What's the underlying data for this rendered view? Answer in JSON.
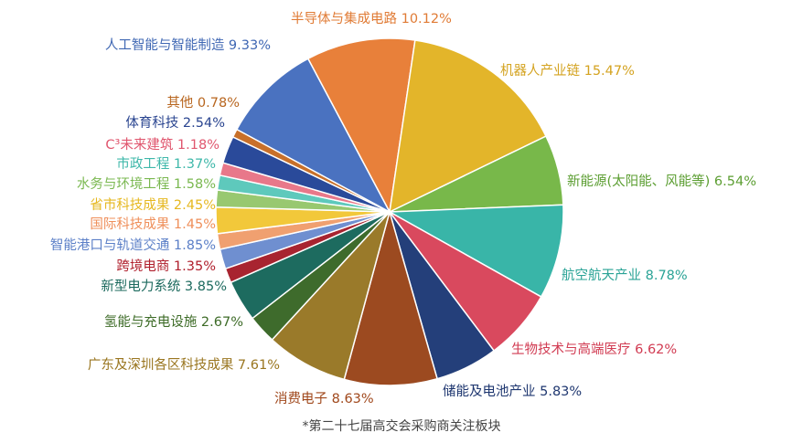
{
  "chart_data": {
    "type": "pie",
    "title": "",
    "footnote": "*第二十七届高交会采购商关注板块",
    "legend": "none",
    "slices": [
      {
        "label": "半导体与集成电路",
        "value": 10.12,
        "value_label": "10.12%",
        "color": "#e8803a",
        "label_color": "#e07b35"
      },
      {
        "label": "机器人产业链",
        "value": 15.47,
        "value_label": "15.47%",
        "color": "#e3b52a",
        "label_color": "#d4a320"
      },
      {
        "label": "新能源(太阳能、风能等)",
        "value": 6.54,
        "value_label": "6.54%",
        "color": "#78b84a",
        "label_color": "#5c9e32"
      },
      {
        "label": "航空航天产业",
        "value": 8.78,
        "value_label": "8.78%",
        "color": "#39b5a8",
        "label_color": "#2aa396"
      },
      {
        "label": "生物技术与高端医疗",
        "value": 6.62,
        "value_label": "6.62%",
        "color": "#d9495e",
        "label_color": "#d13b52"
      },
      {
        "label": "储能及电池产业",
        "value": 5.83,
        "value_label": "5.83%",
        "color": "#243f7a",
        "label_color": "#1f3770"
      },
      {
        "label": "消费电子",
        "value": 8.63,
        "value_label": "8.63%",
        "color": "#9c4a20",
        "label_color": "#a0481c"
      },
      {
        "label": "广东及深圳各区科技成果",
        "value": 7.61,
        "value_label": "7.61%",
        "color": "#9a7a2a",
        "label_color": "#9a7620"
      },
      {
        "label": "氢能与充电设施",
        "value": 2.67,
        "value_label": "2.67%",
        "color": "#3e6b2c",
        "label_color": "#3d6b27"
      },
      {
        "label": "新型电力系统",
        "value": 3.85,
        "value_label": "3.85%",
        "color": "#1d6b5f",
        "label_color": "#1c6a5e"
      },
      {
        "label": "跨境电商",
        "value": 1.35,
        "value_label": "1.35%",
        "color": "#a82430",
        "label_color": "#b0202d"
      },
      {
        "label": "智能港口与轨道交通",
        "value": 1.85,
        "value_label": "1.85%",
        "color": "#6f8fd0",
        "label_color": "#5b7fc7"
      },
      {
        "label": "国际科技成果",
        "value": 1.45,
        "value_label": "1.45%",
        "color": "#f0a070",
        "label_color": "#ef8f5a"
      },
      {
        "label": "省市科技成果",
        "value": 2.45,
        "value_label": "2.45%",
        "color": "#f2c83a",
        "label_color": "#e6b820"
      },
      {
        "label": "水务与环境工程",
        "value": 1.58,
        "value_label": "1.58%",
        "color": "#98c870",
        "label_color": "#7ab850"
      },
      {
        "label": "市政工程",
        "value": 1.37,
        "value_label": "1.37%",
        "color": "#5ec9bc",
        "label_color": "#3fb8aa"
      },
      {
        "label": "C³未来建筑",
        "value": 1.18,
        "value_label": "1.18%",
        "color": "#e8788a",
        "label_color": "#e0566e"
      },
      {
        "label": "体育科技",
        "value": 2.54,
        "value_label": "2.54%",
        "color": "#2a4a9a",
        "label_color": "#2a4590"
      },
      {
        "label": "其他",
        "value": 0.78,
        "value_label": "0.78%",
        "color": "#c8702a",
        "label_color": "#b8661f"
      },
      {
        "label": "人工智能与智能制造",
        "value": 9.33,
        "value_label": "9.33%",
        "color": "#4a72c0",
        "label_color": "#3f67b3"
      }
    ]
  }
}
